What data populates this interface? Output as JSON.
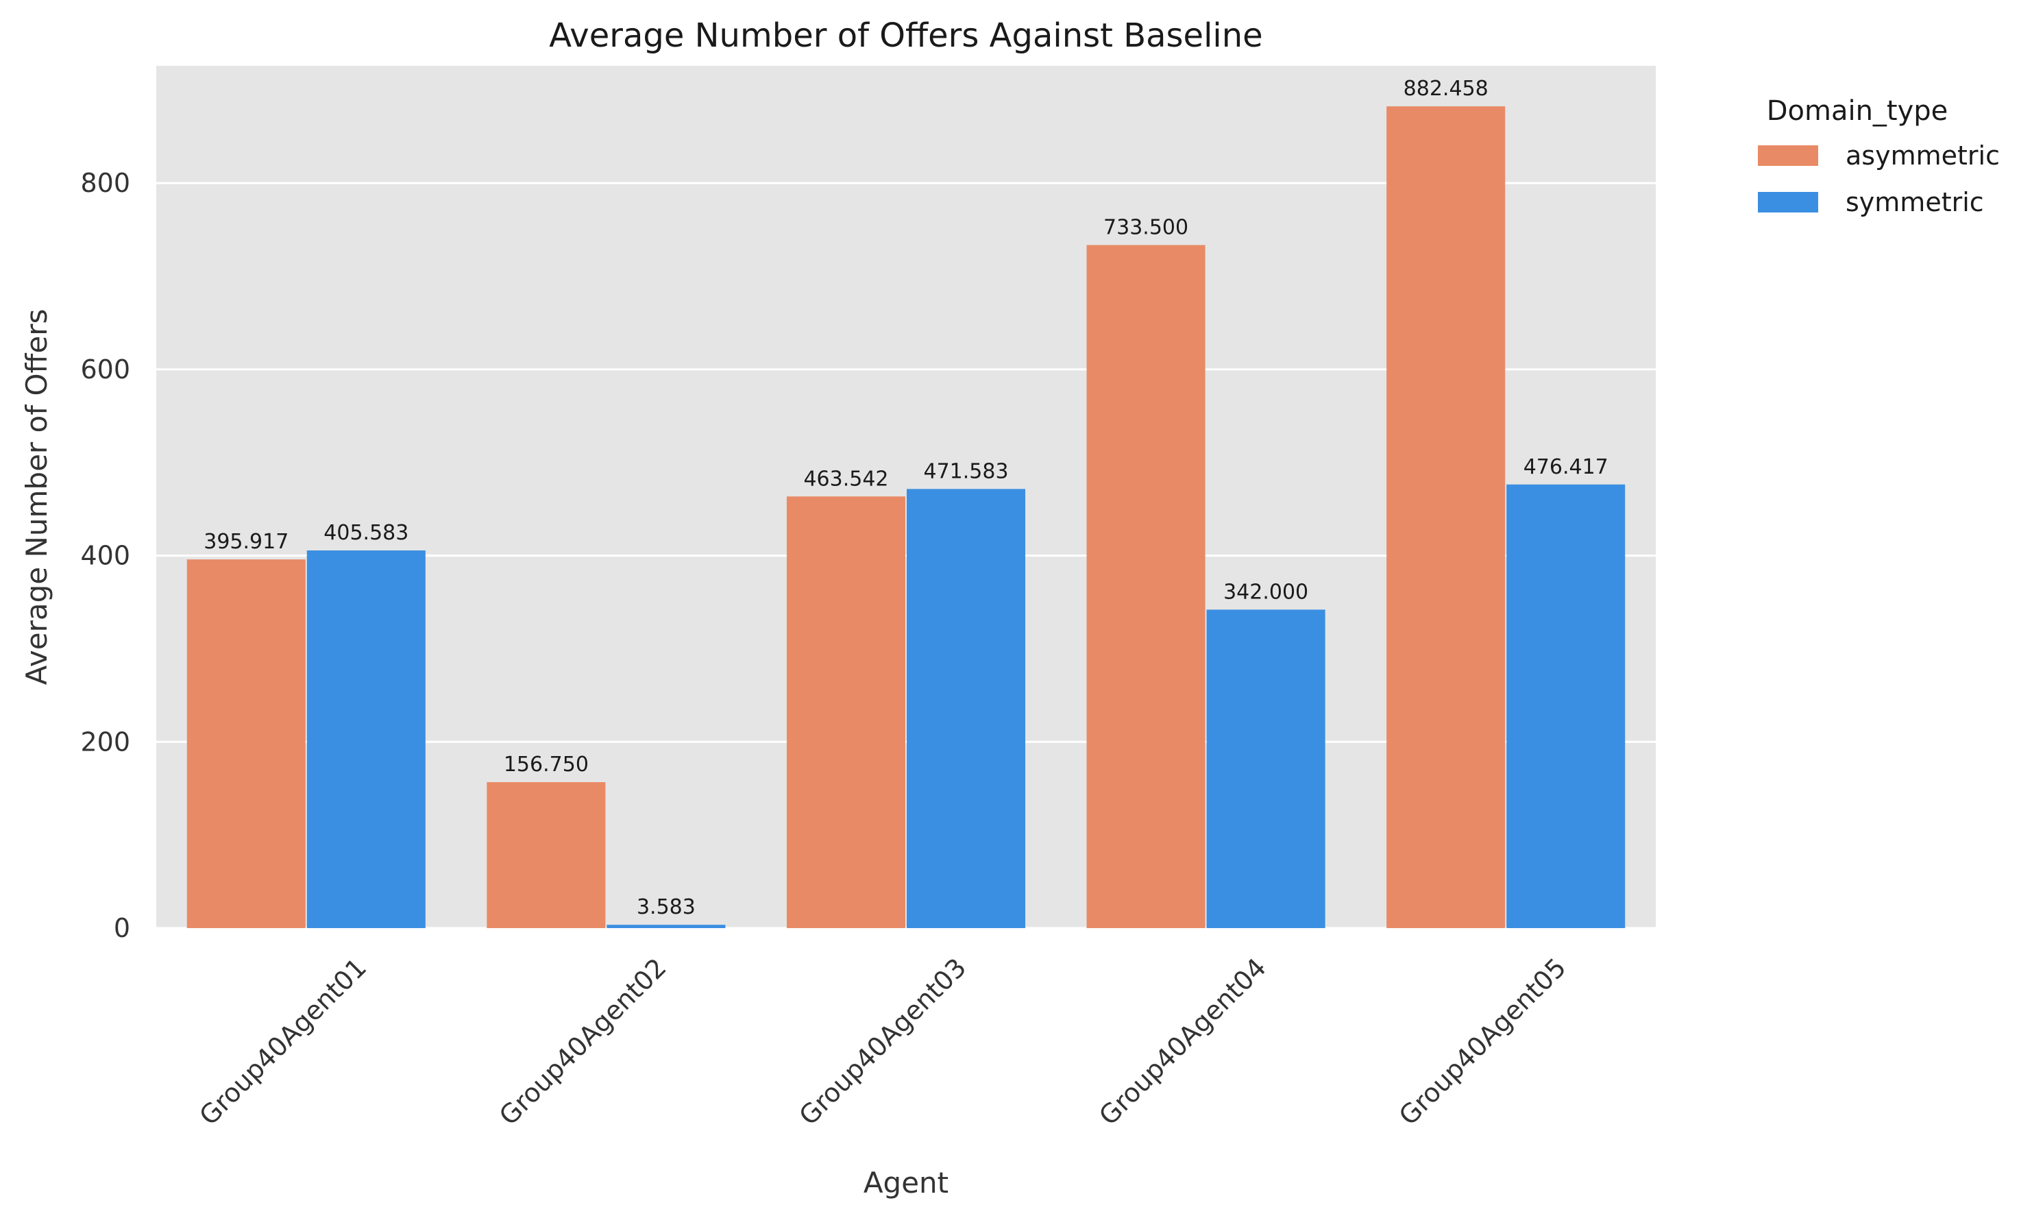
{
  "chart_data": {
    "type": "bar",
    "title": "Average Number of Offers Against Baseline",
    "xlabel": "Agent",
    "ylabel": "Average Number of Offers",
    "categories": [
      "Group40Agent01",
      "Group40Agent02",
      "Group40Agent03",
      "Group40Agent04",
      "Group40Agent05"
    ],
    "series": [
      {
        "name": "asymmetric",
        "color": "#E98A66",
        "values": [
          395.917,
          156.75,
          463.542,
          733.5,
          882.458
        ],
        "labels": [
          "395.917",
          "156.750",
          "463.542",
          "733.500",
          "882.458"
        ]
      },
      {
        "name": "symmetric",
        "color": "#3B8FE2",
        "values": [
          405.583,
          3.583,
          471.583,
          342.0,
          476.417
        ],
        "labels": [
          "405.583",
          "3.583",
          "471.583",
          "342.000",
          "476.417"
        ]
      }
    ],
    "yticks": [
      0,
      200,
      400,
      600,
      800
    ],
    "ylim": [
      0,
      926
    ],
    "grid": true,
    "background_color": "#E5E5E5",
    "legend": {
      "title": "Domain_type",
      "placement": "outside-right"
    }
  }
}
